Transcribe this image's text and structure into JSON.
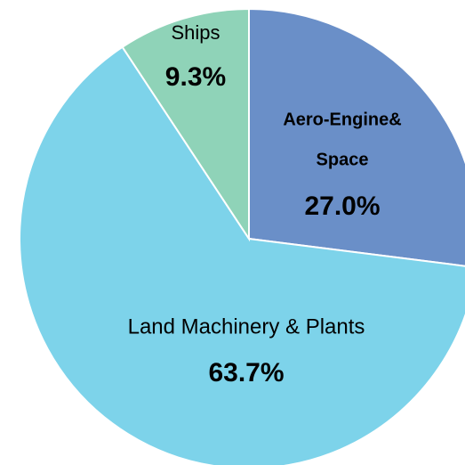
{
  "chart_data": {
    "type": "pie",
    "categories": [
      "Aero-Engine&\nSpace",
      "Land Machinery & Plants",
      "Ships"
    ],
    "values": [
      27.0,
      63.7,
      9.3
    ],
    "value_labels": [
      "27.0%",
      "63.7%",
      "9.3%"
    ],
    "colors": [
      "#6a8fc8",
      "#7dd3ea",
      "#8fd3b8"
    ]
  }
}
